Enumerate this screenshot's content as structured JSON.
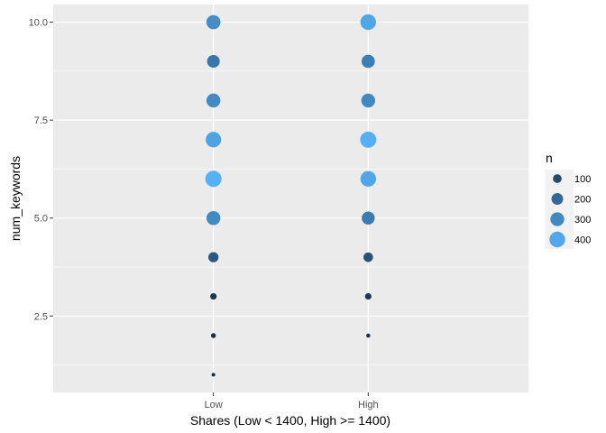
{
  "chart_data": {
    "type": "scatter",
    "title": "",
    "xlabel": "Shares (Low < 1400, High >= 1400)",
    "ylabel": "num_keywords",
    "categories": [
      "Low",
      "High"
    ],
    "ylim": [
      0.55,
      10.45
    ],
    "y_ticks": [
      2.5,
      5.0,
      7.5,
      10.0
    ],
    "y_tick_labels": [
      "2.5",
      "5.0",
      "7.5",
      "10.0"
    ],
    "grid": true,
    "points": [
      {
        "x": "Low",
        "y": 1,
        "n": 8
      },
      {
        "x": "Low",
        "y": 2,
        "n": 20
      },
      {
        "x": "Low",
        "y": 3,
        "n": 45
      },
      {
        "x": "Low",
        "y": 4,
        "n": 145
      },
      {
        "x": "Low",
        "y": 5,
        "n": 305
      },
      {
        "x": "Low",
        "y": 6,
        "n": 430
      },
      {
        "x": "Low",
        "y": 7,
        "n": 385
      },
      {
        "x": "Low",
        "y": 8,
        "n": 305
      },
      {
        "x": "Low",
        "y": 9,
        "n": 245
      },
      {
        "x": "Low",
        "y": 10,
        "n": 315
      },
      {
        "x": "High",
        "y": 2,
        "n": 10
      },
      {
        "x": "High",
        "y": 3,
        "n": 45
      },
      {
        "x": "High",
        "y": 4,
        "n": 125
      },
      {
        "x": "High",
        "y": 5,
        "n": 260
      },
      {
        "x": "High",
        "y": 6,
        "n": 395
      },
      {
        "x": "High",
        "y": 7,
        "n": 425
      },
      {
        "x": "High",
        "y": 8,
        "n": 300
      },
      {
        "x": "High",
        "y": 9,
        "n": 270
      },
      {
        "x": "High",
        "y": 10,
        "n": 395
      }
    ],
    "legend": {
      "title": "n",
      "placement": "right",
      "entries": [
        {
          "label": "100",
          "n": 100
        },
        {
          "label": "200",
          "n": 200
        },
        {
          "label": "300",
          "n": 300
        },
        {
          "label": "400",
          "n": 400
        }
      ]
    },
    "colors": {
      "low": "#132B43",
      "high": "#56B1F7",
      "panel": "#EBEBEB",
      "grid": "#FFFFFF"
    }
  }
}
